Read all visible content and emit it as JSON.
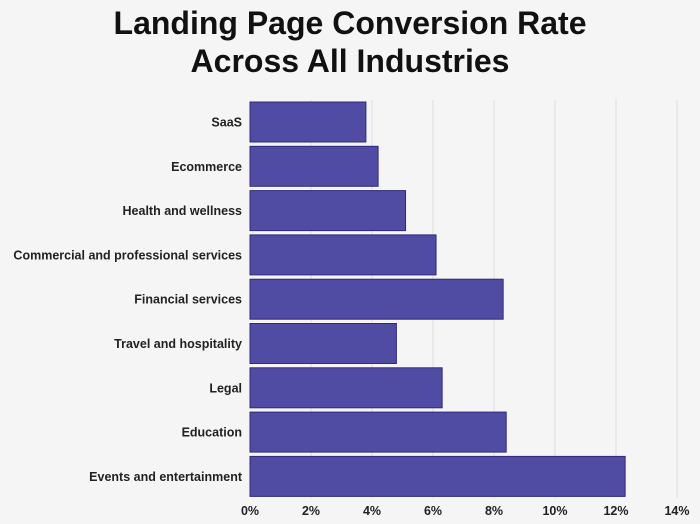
{
  "chart_data": {
    "type": "bar",
    "orientation": "horizontal",
    "title": "Landing Page Conversion Rate Across All Industries",
    "title_lines": [
      "Landing Page Conversion Rate",
      "Across All Industries"
    ],
    "categories": [
      "SaaS",
      "Ecommerce",
      "Health and wellness",
      "Commercial and professional services",
      "Financial services",
      "Travel and hospitality",
      "Legal",
      "Education",
      "Events and entertainment"
    ],
    "values": [
      3.8,
      4.2,
      5.1,
      6.1,
      8.3,
      4.8,
      6.3,
      8.4,
      12.3
    ],
    "value_unit": "%",
    "xlim": [
      0,
      14
    ],
    "xticks": [
      0,
      2,
      4,
      6,
      8,
      10,
      12,
      14
    ],
    "xtick_labels": [
      "0%",
      "2%",
      "4%",
      "6%",
      "8%",
      "10%",
      "12%",
      "14%"
    ],
    "xlabel": "",
    "ylabel": "",
    "grid": "vertical",
    "legend": "none"
  },
  "colors": {
    "background": "#f5f5f5",
    "bar_fill": "#514ca3",
    "bar_stroke": "#2f2a7a",
    "grid": "#dddddd",
    "text": "#222222"
  }
}
